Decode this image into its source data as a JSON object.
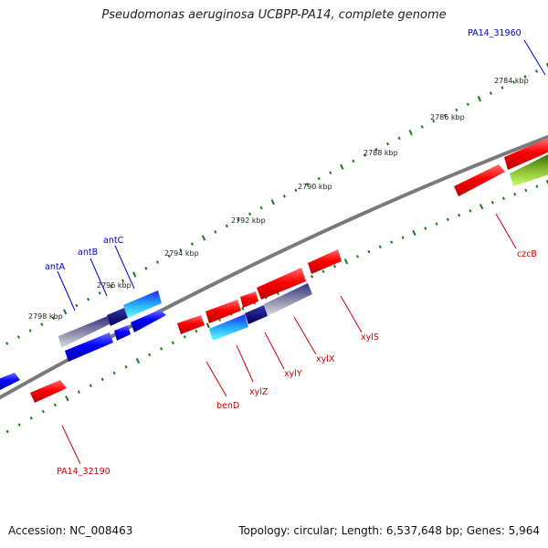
{
  "title": "Pseudomonas aeruginosa UCBPP-PA14, complete genome",
  "footer": {
    "accession": "Accession: NC_008463",
    "summary": "Topology: circular; Length: 6,537,648 bp; Genes: 5,964"
  },
  "colors": {
    "backbone": "#888888",
    "tick": "#1a7a1a",
    "label_blue": "#0000cc",
    "label_red": "#cc0000",
    "gene_red": "#ff0000",
    "gene_blue": "#0000ff",
    "gene_cyan": "#00ffff",
    "gene_navy": "#000080",
    "gene_green": "#99cc33"
  },
  "scale_labels": [
    "2784 kbp",
    "2786 kbp",
    "2788 kbp",
    "2790 kbp",
    "2792 kbp",
    "2794 kbp",
    "2796 kbp",
    "2798 kbp"
  ],
  "gene_labels_top": [
    "PA14_31960",
    "antC",
    "antB",
    "antA"
  ],
  "gene_labels_bottom": [
    "czcB",
    "xylS",
    "xylX",
    "xylY",
    "xylZ",
    "benD",
    "PA14_32190"
  ]
}
